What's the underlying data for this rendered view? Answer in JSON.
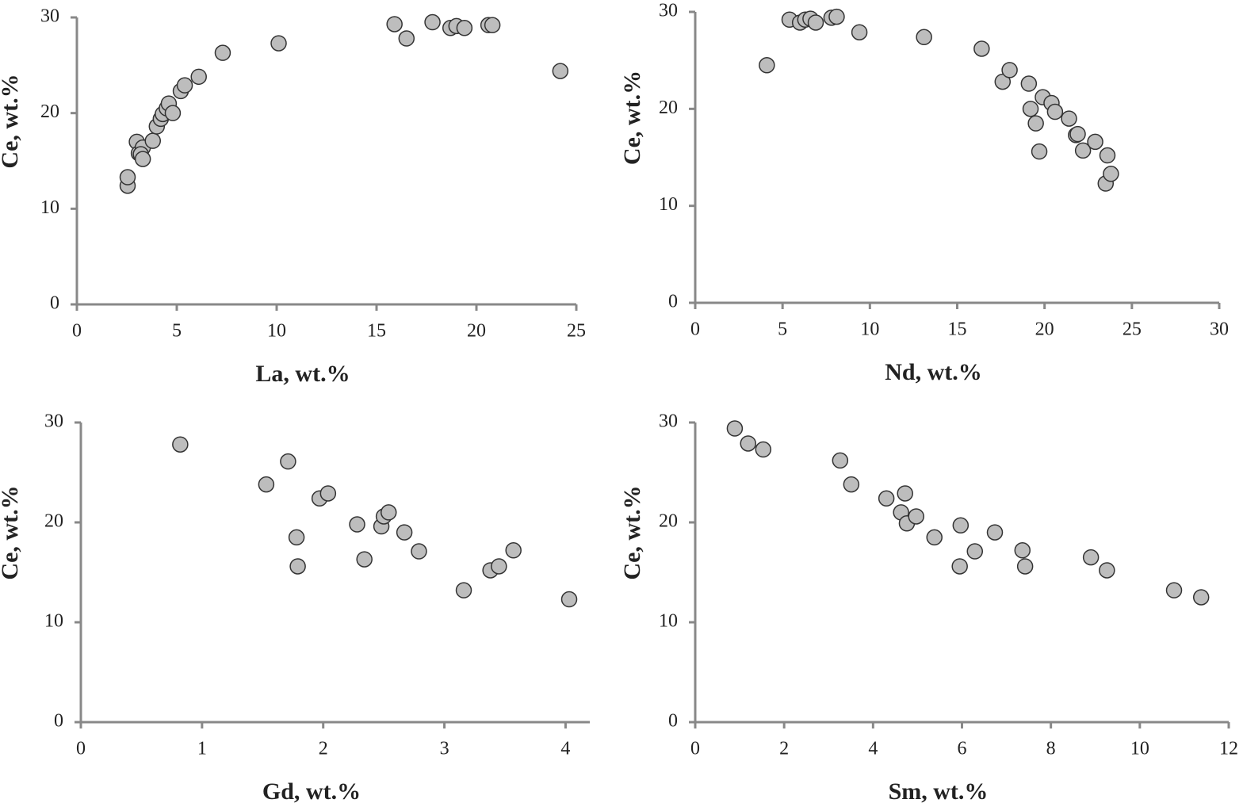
{
  "chart_data": [
    {
      "type": "scatter",
      "x_label": "La, wt.%",
      "y_label": "Ce, wt.%",
      "color": "#bdbdbd",
      "xlim": [
        0,
        25
      ],
      "ylim": [
        0,
        30
      ],
      "xticks": [
        0,
        5,
        10,
        15,
        20,
        25
      ],
      "yticks": [
        0,
        10,
        20,
        30
      ],
      "x": [
        2.54,
        2.54,
        3.0,
        3.1,
        3.3,
        3.2,
        3.3,
        3.8,
        4.0,
        4.2,
        4.3,
        4.5,
        4.6,
        4.8,
        5.2,
        5.4,
        6.1,
        7.3,
        10.1,
        15.9,
        16.5,
        17.8,
        18.7,
        19.0,
        19.4,
        20.6,
        20.8,
        24.2
      ],
      "values": [
        12.4,
        13.3,
        17.0,
        15.8,
        16.4,
        15.7,
        15.2,
        17.1,
        18.6,
        19.4,
        19.9,
        20.5,
        21.0,
        20.0,
        22.3,
        22.9,
        23.8,
        26.3,
        27.3,
        29.3,
        27.8,
        29.5,
        28.9,
        29.1,
        28.9,
        29.2,
        29.2,
        24.4
      ]
    },
    {
      "type": "scatter",
      "x_label": "Nd, wt.%",
      "y_label": "Ce, wt.%",
      "color": "#bdbdbd",
      "xlim": [
        0,
        30
      ],
      "ylim": [
        0,
        30
      ],
      "xticks": [
        0,
        5,
        10,
        15,
        20,
        25,
        30
      ],
      "yticks": [
        0,
        10,
        20,
        30
      ],
      "x": [
        4.1,
        5.4,
        6.0,
        6.3,
        6.6,
        6.9,
        7.8,
        8.1,
        9.4,
        13.1,
        16.4,
        17.6,
        18.0,
        19.1,
        19.2,
        19.5,
        19.7,
        19.9,
        20.4,
        20.6,
        21.4,
        21.8,
        21.9,
        22.2,
        22.9,
        23.6,
        23.5,
        23.8
      ],
      "values": [
        24.5,
        29.2,
        28.9,
        29.2,
        29.3,
        28.9,
        29.4,
        29.5,
        27.9,
        27.4,
        26.2,
        22.8,
        24.0,
        22.6,
        20.0,
        18.5,
        15.6,
        21.2,
        20.6,
        19.7,
        19.0,
        17.3,
        17.4,
        15.7,
        16.6,
        15.2,
        12.3,
        13.3
      ]
    },
    {
      "type": "scatter",
      "x_label": "Gd, wt.%",
      "y_label": "Ce, wt.%",
      "color": "#bdbdbd",
      "xlim": [
        0,
        4.2
      ],
      "ylim": [
        0,
        30
      ],
      "xticks": [
        0,
        1,
        2,
        3,
        4
      ],
      "yticks": [
        0,
        10,
        20,
        30
      ],
      "x": [
        0.82,
        1.53,
        1.71,
        1.78,
        1.79,
        1.97,
        2.04,
        2.28,
        2.34,
        2.48,
        2.5,
        2.54,
        2.67,
        2.79,
        3.16,
        3.38,
        3.45,
        3.57,
        4.03
      ],
      "values": [
        27.8,
        23.8,
        26.1,
        18.5,
        15.6,
        22.4,
        22.9,
        19.8,
        16.3,
        19.6,
        20.6,
        21.0,
        19.0,
        17.1,
        13.2,
        15.2,
        15.6,
        17.2,
        12.3
      ]
    },
    {
      "type": "scatter",
      "x_label": "Sm, wt.%",
      "y_label": "Ce, wt.%",
      "color": "#bdbdbd",
      "xlim": [
        0,
        12
      ],
      "ylim": [
        0,
        30
      ],
      "xticks": [
        0,
        2,
        4,
        6,
        8,
        10,
        12
      ],
      "yticks": [
        0,
        10,
        20,
        30
      ],
      "x": [
        0.89,
        1.19,
        1.53,
        3.26,
        3.51,
        4.3,
        4.72,
        4.63,
        4.76,
        4.97,
        5.38,
        5.97,
        5.95,
        6.29,
        6.74,
        7.36,
        7.42,
        8.9,
        9.26,
        10.77,
        11.38
      ],
      "values": [
        29.4,
        27.9,
        27.3,
        26.2,
        23.8,
        22.4,
        22.9,
        21.0,
        19.9,
        20.6,
        18.5,
        19.7,
        15.6,
        17.1,
        19.0,
        17.2,
        15.6,
        16.5,
        15.2,
        13.2,
        12.5
      ]
    }
  ]
}
